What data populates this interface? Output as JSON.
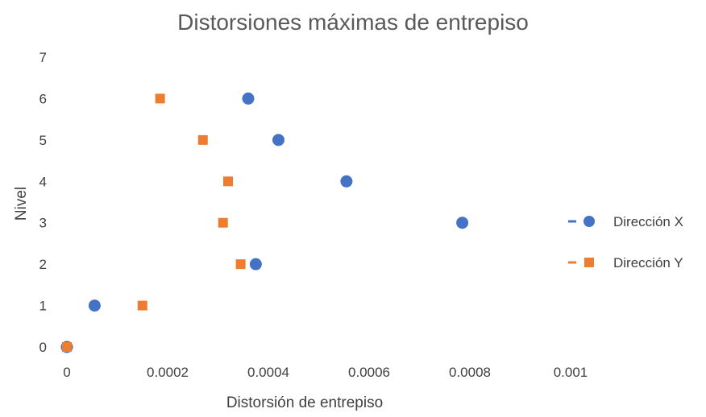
{
  "chart_data": {
    "type": "scatter",
    "title": "Distorsiones máximas de entrepiso",
    "xlabel": "Distorsión de entrepiso",
    "ylabel": "Nivel",
    "xlim": [
      0,
      0.001
    ],
    "ylim": [
      0,
      7
    ],
    "x_ticks": [
      "0",
      "0.0002",
      "0.0004",
      "0.0006",
      "0.0008",
      "0.001"
    ],
    "y_ticks": [
      "0",
      "1",
      "2",
      "3",
      "4",
      "5",
      "6",
      "7"
    ],
    "grid": false,
    "legend_position": "right",
    "series": [
      {
        "name": "Dirección X",
        "marker": "circle",
        "color": "#4472C4",
        "points": [
          {
            "x": 0.0,
            "y": 0
          },
          {
            "x": 5.5e-05,
            "y": 1
          },
          {
            "x": 0.000375,
            "y": 2
          },
          {
            "x": 0.000785,
            "y": 3
          },
          {
            "x": 0.000555,
            "y": 4
          },
          {
            "x": 0.00042,
            "y": 5
          },
          {
            "x": 0.00036,
            "y": 6
          }
        ]
      },
      {
        "name": "Dirección Y",
        "marker": "square",
        "color": "#ED7D31",
        "points": [
          {
            "x": 0.0,
            "y": 0
          },
          {
            "x": 0.00015,
            "y": 1
          },
          {
            "x": 0.000345,
            "y": 2
          },
          {
            "x": 0.00031,
            "y": 3
          },
          {
            "x": 0.00032,
            "y": 4
          },
          {
            "x": 0.00027,
            "y": 5
          },
          {
            "x": 0.000185,
            "y": 6
          }
        ]
      }
    ]
  }
}
